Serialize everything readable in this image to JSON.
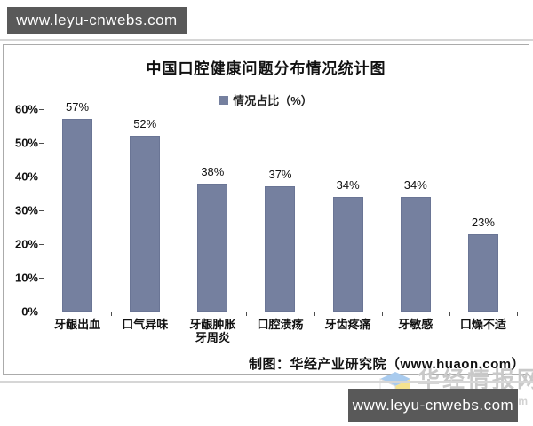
{
  "banners": {
    "top_text": "www.leyu-cnwebs.com",
    "bottom_text": "www.leyu-cnwebs.com"
  },
  "chart": {
    "title": "中国口腔健康问题分布情况统计图",
    "legend_label": "情况占比（%）",
    "attribution": "制图：华经产业研究院（www.huaon.com）"
  },
  "watermark": {
    "brand": "华经情报网",
    "domain": "huaon.com",
    "logo": "huaon-cube-logo"
  },
  "colors": {
    "bar": "#75809F",
    "banner": "#595959",
    "logo_blue": "#A9CBEE",
    "logo_yellow": "#F6E38E"
  },
  "chart_data": {
    "type": "bar",
    "title": "中国口腔健康问题分布情况统计图",
    "series_name": "情况占比（%）",
    "categories": [
      "牙龈出血",
      "口气异味",
      "牙龈肿胀\n牙周炎",
      "口腔溃疡",
      "牙齿疼痛",
      "牙敏感",
      "口燥不适"
    ],
    "values": [
      57,
      52,
      38,
      37,
      34,
      34,
      23
    ],
    "value_labels": [
      "57%",
      "52%",
      "38%",
      "37%",
      "34%",
      "34%",
      "23%"
    ],
    "unit": "%",
    "ylim": [
      0,
      60
    ],
    "ytick_step": 10,
    "ytick_labels": [
      "0%",
      "10%",
      "20%",
      "30%",
      "40%",
      "50%",
      "60%"
    ],
    "grid": false,
    "legend_position": "top-center",
    "xlabel": "",
    "ylabel": ""
  }
}
